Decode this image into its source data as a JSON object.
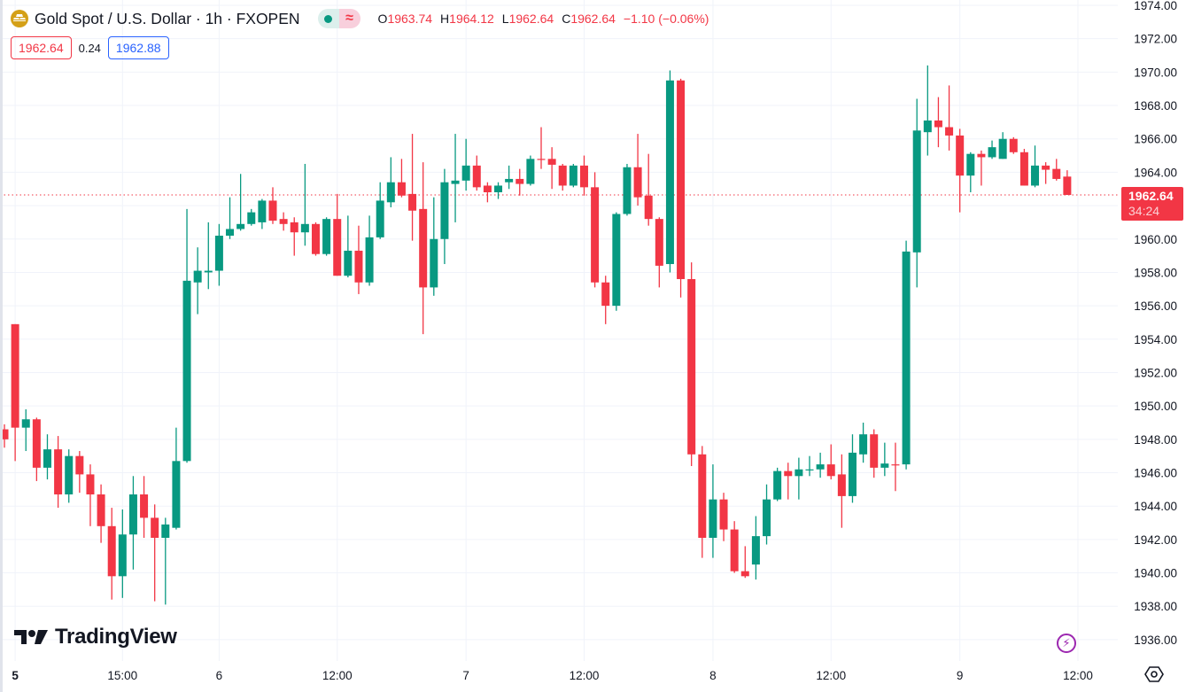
{
  "header": {
    "title": "Gold Spot / U.S. Dollar · 1h · FXOPEN",
    "toggle_icon": "≈",
    "ohlc": {
      "o_label": "O",
      "o": "1963.74",
      "h_label": "H",
      "h": "1964.12",
      "l_label": "L",
      "l": "1962.64",
      "c_label": "C",
      "c": "1962.64",
      "change": "−1.10 (−0.06%)"
    }
  },
  "quote": {
    "bid": "1962.64",
    "spread": "0.24",
    "ask": "1962.88"
  },
  "price_tag": {
    "price": "1962.64",
    "countdown": "34:24"
  },
  "logo": {
    "text": "TradingView"
  },
  "icons": {
    "bolt": "⚡"
  },
  "colors": {
    "up": "#089981",
    "down": "#F23645",
    "grid": "#f0f3fa",
    "axis_text": "#131722"
  },
  "chart_data": {
    "type": "candlestick",
    "title": "Gold Spot / U.S. Dollar · 1h · FXOPEN",
    "ylim": [
      1935.2,
      1974.3
    ],
    "grid": true,
    "last_price": 1962.64,
    "y_ticks": [
      "1974.00",
      "1972.00",
      "1970.00",
      "1968.00",
      "1966.00",
      "1964.00",
      "1962.00",
      "1960.00",
      "1958.00",
      "1956.00",
      "1954.00",
      "1952.00",
      "1950.00",
      "1948.00",
      "1946.00",
      "1944.00",
      "1942.00",
      "1940.00",
      "1938.00",
      "1936.00"
    ],
    "x_ticks": [
      {
        "label": "5",
        "candle": 1,
        "bold": true
      },
      {
        "label": "15:00",
        "candle": 11
      },
      {
        "label": "6",
        "candle": 20
      },
      {
        "label": "12:00",
        "candle": 31
      },
      {
        "label": "7",
        "candle": 43
      },
      {
        "label": "12:00",
        "candle": 54
      },
      {
        "label": "8",
        "candle": 66
      },
      {
        "label": "12:00",
        "candle": 77
      },
      {
        "label": "9",
        "candle": 89
      },
      {
        "label": "12:00",
        "candle": 100
      }
    ],
    "ohlc_fields": [
      "open",
      "high",
      "low",
      "close"
    ],
    "candles": [
      [
        1948.6,
        1948.9,
        1947.5,
        1948.0
      ],
      [
        1954.9,
        1954.9,
        1946.7,
        1948.7
      ],
      [
        1948.7,
        1949.8,
        1947.3,
        1949.2
      ],
      [
        1949.2,
        1949.3,
        1945.5,
        1946.3
      ],
      [
        1946.3,
        1948.3,
        1945.6,
        1947.4
      ],
      [
        1947.4,
        1948.2,
        1943.9,
        1944.7
      ],
      [
        1944.7,
        1947.4,
        1944.2,
        1947.0
      ],
      [
        1947.0,
        1947.3,
        1944.8,
        1945.9
      ],
      [
        1945.9,
        1946.5,
        1942.8,
        1944.7
      ],
      [
        1944.7,
        1945.3,
        1941.8,
        1942.8
      ],
      [
        1942.8,
        1943.9,
        1938.4,
        1939.8
      ],
      [
        1939.8,
        1943.8,
        1938.5,
        1942.3
      ],
      [
        1942.3,
        1945.8,
        1940.2,
        1944.7
      ],
      [
        1944.7,
        1945.8,
        1942.1,
        1943.3
      ],
      [
        1943.3,
        1944.1,
        1938.3,
        1942.1
      ],
      [
        1942.1,
        1943.3,
        1938.1,
        1942.9
      ],
      [
        1942.7,
        1948.7,
        1942.6,
        1946.7
      ],
      [
        1946.7,
        1961.8,
        1946.6,
        1957.5
      ],
      [
        1957.4,
        1959.5,
        1955.5,
        1958.1
      ],
      [
        1958.0,
        1961.0,
        1957.0,
        1958.1
      ],
      [
        1958.1,
        1960.9,
        1957.2,
        1960.2
      ],
      [
        1960.2,
        1962.5,
        1960.0,
        1960.6
      ],
      [
        1960.6,
        1963.9,
        1960.5,
        1960.9
      ],
      [
        1960.9,
        1961.8,
        1960.8,
        1961.6
      ],
      [
        1961.0,
        1962.4,
        1960.6,
        1962.3
      ],
      [
        1962.3,
        1963.1,
        1960.9,
        1961.1
      ],
      [
        1961.2,
        1961.6,
        1960.5,
        1960.9
      ],
      [
        1961.0,
        1961.3,
        1959.0,
        1960.4
      ],
      [
        1960.4,
        1964.5,
        1959.6,
        1960.9
      ],
      [
        1960.9,
        1961.0,
        1959.0,
        1959.1
      ],
      [
        1959.1,
        1961.3,
        1959.0,
        1961.2
      ],
      [
        1961.2,
        1962.7,
        1957.8,
        1957.8
      ],
      [
        1957.8,
        1961.4,
        1957.7,
        1959.3
      ],
      [
        1959.3,
        1960.8,
        1956.7,
        1957.4
      ],
      [
        1957.4,
        1961.4,
        1957.2,
        1960.1
      ],
      [
        1960.1,
        1963.4,
        1960.0,
        1962.3
      ],
      [
        1962.2,
        1964.9,
        1961.9,
        1963.4
      ],
      [
        1963.4,
        1964.8,
        1962.5,
        1962.6
      ],
      [
        1962.7,
        1966.3,
        1959.9,
        1961.7
      ],
      [
        1961.8,
        1964.6,
        1954.3,
        1957.1
      ],
      [
        1957.1,
        1962.5,
        1956.6,
        1960.0
      ],
      [
        1960.0,
        1964.2,
        1958.5,
        1963.4
      ],
      [
        1963.3,
        1966.3,
        1961.0,
        1963.5
      ],
      [
        1963.5,
        1966.0,
        1962.9,
        1964.4
      ],
      [
        1964.4,
        1965.0,
        1962.9,
        1963.1
      ],
      [
        1963.2,
        1963.4,
        1962.2,
        1962.8
      ],
      [
        1962.8,
        1963.4,
        1962.4,
        1963.2
      ],
      [
        1963.4,
        1964.4,
        1963.0,
        1963.6
      ],
      [
        1963.6,
        1964.2,
        1962.6,
        1963.3
      ],
      [
        1963.3,
        1965.0,
        1963.2,
        1964.8
      ],
      [
        1964.8,
        1966.7,
        1964.2,
        1964.75
      ],
      [
        1964.8,
        1965.5,
        1963.0,
        1964.45
      ],
      [
        1964.4,
        1964.5,
        1962.9,
        1963.2
      ],
      [
        1963.2,
        1964.5,
        1963.1,
        1964.4
      ],
      [
        1964.4,
        1965.0,
        1962.6,
        1963.1
      ],
      [
        1963.1,
        1964.0,
        1957.1,
        1957.4
      ],
      [
        1957.4,
        1957.8,
        1954.9,
        1956.0
      ],
      [
        1956.0,
        1961.6,
        1955.7,
        1961.5
      ],
      [
        1961.5,
        1964.5,
        1961.4,
        1964.3
      ],
      [
        1964.3,
        1966.3,
        1962.0,
        1962.5
      ],
      [
        1962.6,
        1965.1,
        1960.8,
        1961.2
      ],
      [
        1961.2,
        1961.3,
        1957.1,
        1958.4
      ],
      [
        1958.5,
        1970.1,
        1958.0,
        1969.5
      ],
      [
        1969.5,
        1969.6,
        1956.5,
        1957.6
      ],
      [
        1957.6,
        1958.6,
        1946.4,
        1947.1
      ],
      [
        1947.1,
        1947.6,
        1940.9,
        1942.1
      ],
      [
        1942.1,
        1946.5,
        1940.9,
        1944.4
      ],
      [
        1944.4,
        1944.8,
        1941.9,
        1942.6
      ],
      [
        1942.6,
        1943.1,
        1940.0,
        1940.1
      ],
      [
        1940.1,
        1941.6,
        1939.7,
        1939.8
      ],
      [
        1940.5,
        1943.4,
        1939.6,
        1942.2
      ],
      [
        1942.2,
        1945.3,
        1941.7,
        1944.4
      ],
      [
        1944.4,
        1946.3,
        1944.3,
        1946.1
      ],
      [
        1946.1,
        1946.6,
        1944.4,
        1945.8
      ],
      [
        1945.8,
        1946.9,
        1944.4,
        1946.2
      ],
      [
        1946.15,
        1947.0,
        1945.8,
        1946.2
      ],
      [
        1946.2,
        1947.2,
        1945.7,
        1946.5
      ],
      [
        1946.5,
        1947.7,
        1945.6,
        1945.8
      ],
      [
        1945.9,
        1947.1,
        1942.7,
        1944.6
      ],
      [
        1944.6,
        1948.3,
        1944.2,
        1947.2
      ],
      [
        1947.1,
        1949.0,
        1946.6,
        1948.3
      ],
      [
        1948.3,
        1948.6,
        1945.7,
        1946.3
      ],
      [
        1946.3,
        1947.8,
        1945.8,
        1946.55
      ],
      [
        1946.5,
        1947.8,
        1944.9,
        1946.45
      ],
      [
        1946.5,
        1959.9,
        1946.2,
        1959.25
      ],
      [
        1959.2,
        1968.4,
        1957.1,
        1966.5
      ],
      [
        1966.4,
        1970.4,
        1965.0,
        1967.1
      ],
      [
        1967.1,
        1968.5,
        1965.5,
        1966.7
      ],
      [
        1966.7,
        1969.2,
        1965.3,
        1966.2
      ],
      [
        1966.2,
        1966.6,
        1961.6,
        1963.8
      ],
      [
        1963.8,
        1965.2,
        1962.8,
        1965.1
      ],
      [
        1965.1,
        1965.3,
        1963.2,
        1964.9
      ],
      [
        1964.9,
        1965.9,
        1964.8,
        1965.5
      ],
      [
        1964.8,
        1966.4,
        1964.8,
        1966.0
      ],
      [
        1966.0,
        1966.1,
        1965.1,
        1965.2
      ],
      [
        1965.2,
        1965.4,
        1963.2,
        1963.2
      ],
      [
        1963.2,
        1965.6,
        1963.1,
        1964.4
      ],
      [
        1964.4,
        1964.6,
        1963.3,
        1964.15
      ],
      [
        1964.2,
        1964.8,
        1963.5,
        1963.6
      ],
      [
        1963.74,
        1964.12,
        1962.64,
        1962.64
      ]
    ]
  }
}
